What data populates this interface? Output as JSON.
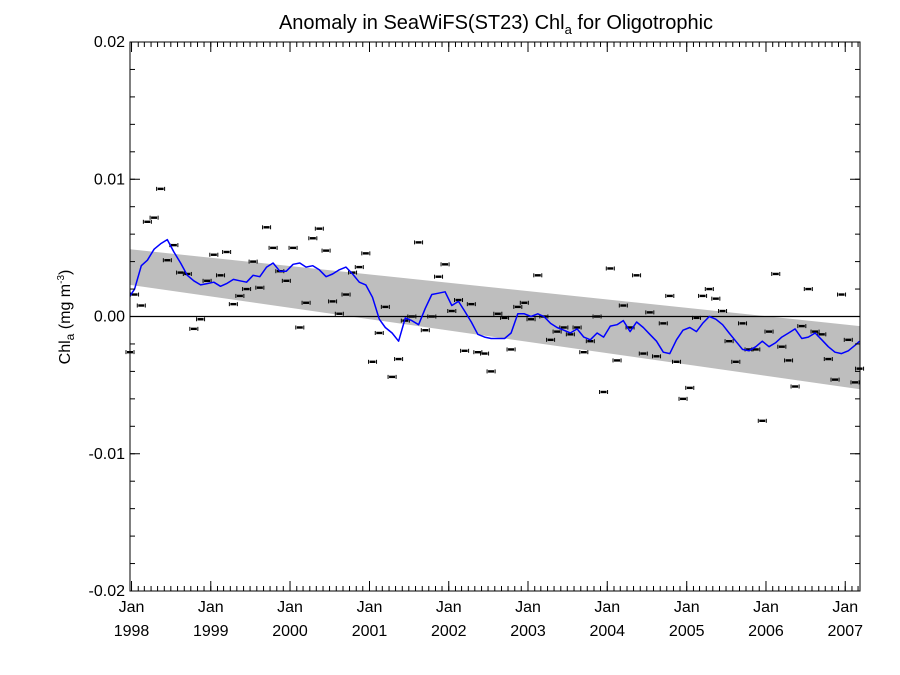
{
  "chart_data": {
    "type": "scatter",
    "title": {
      "main": "Anomaly in SeaWiFS(ST23) Chl",
      "sub": "a",
      "rest": " for Oligotrophic"
    },
    "ylabel": {
      "main": "Chl",
      "sub": "a",
      "unit_open": " (mg m",
      "unit_sup": "-3",
      "unit_close": ")"
    },
    "xlabel": "",
    "ylim": [
      -0.02,
      0.02
    ],
    "xlim": [
      "1997-12-25",
      "2007-03-10"
    ],
    "y_ticks": [
      {
        "value": 0.02,
        "label": "0.02"
      },
      {
        "value": 0.01,
        "label": "0.01"
      },
      {
        "value": 0.0,
        "label": "0.00"
      },
      {
        "value": -0.01,
        "label": "-0.01"
      },
      {
        "value": -0.02,
        "label": "-0.02"
      }
    ],
    "x_ticks": [
      {
        "date": "1998-01-01",
        "month": "Jan",
        "year": "1998"
      },
      {
        "date": "1999-01-01",
        "month": "Jan",
        "year": "1999"
      },
      {
        "date": "2000-01-01",
        "month": "Jan",
        "year": "2000"
      },
      {
        "date": "2001-01-01",
        "month": "Jan",
        "year": "2001"
      },
      {
        "date": "2002-01-01",
        "month": "Jan",
        "year": "2002"
      },
      {
        "date": "2003-01-01",
        "month": "Jan",
        "year": "2003"
      },
      {
        "date": "2004-01-01",
        "month": "Jan",
        "year": "2004"
      },
      {
        "date": "2005-01-01",
        "month": "Jan",
        "year": "2005"
      },
      {
        "date": "2006-01-01",
        "month": "Jan",
        "year": "2006"
      },
      {
        "date": "2007-01-01",
        "month": "Jan",
        "year": "2007"
      }
    ],
    "zero_line": 0.0,
    "trend_band": {
      "start": {
        "x": "1997-12-25",
        "upper": 0.0049,
        "lower": 0.0023
      },
      "end": {
        "x": "2007-03-10",
        "upper": -0.0007,
        "lower": -0.0053
      },
      "color": "#bebebe"
    },
    "series": [
      {
        "style": "points",
        "color": "#000000",
        "points": [
          [
            "1997-12-25",
            -0.0026
          ],
          [
            "1998-01-15",
            0.0016
          ],
          [
            "1998-02-15",
            0.0008
          ],
          [
            "1998-03-15",
            0.0069
          ],
          [
            "1998-04-15",
            0.0072
          ],
          [
            "1998-05-15",
            0.0093
          ],
          [
            "1998-06-15",
            0.0041
          ],
          [
            "1998-07-15",
            0.0052
          ],
          [
            "1998-08-15",
            0.0032
          ],
          [
            "1998-09-15",
            0.0031
          ],
          [
            "1998-10-15",
            -0.0009
          ],
          [
            "1998-11-15",
            -0.0002
          ],
          [
            "1998-12-15",
            0.0026
          ],
          [
            "1999-01-15",
            0.0045
          ],
          [
            "1999-02-15",
            0.003
          ],
          [
            "1999-03-15",
            0.0047
          ],
          [
            "1999-04-15",
            0.0009
          ],
          [
            "1999-05-15",
            0.0015
          ],
          [
            "1999-06-15",
            0.002
          ],
          [
            "1999-07-15",
            0.004
          ],
          [
            "1999-08-15",
            0.0021
          ],
          [
            "1999-09-15",
            0.0065
          ],
          [
            "1999-10-15",
            0.005
          ],
          [
            "1999-11-15",
            0.0033
          ],
          [
            "1999-12-15",
            0.0026
          ],
          [
            "2000-01-15",
            0.005
          ],
          [
            "2000-02-15",
            -0.0008
          ],
          [
            "2000-03-15",
            0.001
          ],
          [
            "2000-04-15",
            0.0057
          ],
          [
            "2000-05-15",
            0.0064
          ],
          [
            "2000-06-15",
            0.0048
          ],
          [
            "2000-07-15",
            0.0011
          ],
          [
            "2000-08-15",
            0.0002
          ],
          [
            "2000-09-15",
            0.0016
          ],
          [
            "2000-10-15",
            0.0032
          ],
          [
            "2000-11-15",
            0.0036
          ],
          [
            "2000-12-15",
            0.0046
          ],
          [
            "2001-01-15",
            -0.0033
          ],
          [
            "2001-02-15",
            -0.0012
          ],
          [
            "2001-03-15",
            0.0007
          ],
          [
            "2001-04-15",
            -0.0044
          ],
          [
            "2001-05-15",
            -0.0031
          ],
          [
            "2001-06-15",
            -0.0003
          ],
          [
            "2001-07-15",
            0.0
          ],
          [
            "2001-08-15",
            0.0054
          ],
          [
            "2001-09-15",
            -0.001
          ],
          [
            "2001-10-15",
            0.0
          ],
          [
            "2001-11-15",
            0.0029
          ],
          [
            "2001-12-15",
            0.0038
          ],
          [
            "2002-01-15",
            0.0004
          ],
          [
            "2002-02-15",
            0.0012
          ],
          [
            "2002-03-15",
            -0.0025
          ],
          [
            "2002-04-15",
            0.0009
          ],
          [
            "2002-05-15",
            -0.0026
          ],
          [
            "2002-06-15",
            -0.0027
          ],
          [
            "2002-07-15",
            -0.004
          ],
          [
            "2002-08-15",
            0.0002
          ],
          [
            "2002-09-15",
            -0.0001
          ],
          [
            "2002-10-15",
            -0.0024
          ],
          [
            "2002-11-15",
            0.0007
          ],
          [
            "2002-12-15",
            0.001
          ],
          [
            "2003-01-15",
            -0.0002
          ],
          [
            "2003-02-15",
            0.003
          ],
          [
            "2003-03-15",
            0.0
          ],
          [
            "2003-04-15",
            -0.0017
          ],
          [
            "2003-05-15",
            -0.0011
          ],
          [
            "2003-06-15",
            -0.0008
          ],
          [
            "2003-07-15",
            -0.0013
          ],
          [
            "2003-08-15",
            -0.0008
          ],
          [
            "2003-09-15",
            -0.0026
          ],
          [
            "2003-10-15",
            -0.0018
          ],
          [
            "2003-11-15",
            0.0
          ],
          [
            "2003-12-15",
            -0.0055
          ],
          [
            "2004-01-15",
            0.0035
          ],
          [
            "2004-02-15",
            -0.0032
          ],
          [
            "2004-03-15",
            0.0008
          ],
          [
            "2004-04-15",
            -0.0008
          ],
          [
            "2004-05-15",
            0.003
          ],
          [
            "2004-06-15",
            -0.0027
          ],
          [
            "2004-07-15",
            0.0003
          ],
          [
            "2004-08-15",
            -0.0029
          ],
          [
            "2004-09-15",
            -0.0005
          ],
          [
            "2004-10-15",
            0.0015
          ],
          [
            "2004-11-15",
            -0.0033
          ],
          [
            "2004-12-15",
            -0.006
          ],
          [
            "2005-01-15",
            -0.0052
          ],
          [
            "2005-02-15",
            -0.0001
          ],
          [
            "2005-03-15",
            0.0015
          ],
          [
            "2005-04-15",
            0.002
          ],
          [
            "2005-05-15",
            0.0013
          ],
          [
            "2005-06-15",
            0.0004
          ],
          [
            "2005-07-15",
            -0.0018
          ],
          [
            "2005-08-15",
            -0.0033
          ],
          [
            "2005-09-15",
            -0.0005
          ],
          [
            "2005-10-15",
            -0.0024
          ],
          [
            "2005-11-15",
            -0.0024
          ],
          [
            "2005-12-15",
            -0.0076
          ],
          [
            "2006-01-15",
            -0.0011
          ],
          [
            "2006-02-15",
            0.0031
          ],
          [
            "2006-03-15",
            -0.0022
          ],
          [
            "2006-04-15",
            -0.0032
          ],
          [
            "2006-05-15",
            -0.0051
          ],
          [
            "2006-06-15",
            -0.0007
          ],
          [
            "2006-07-15",
            0.002
          ],
          [
            "2006-08-15",
            -0.0011
          ],
          [
            "2006-09-15",
            -0.0013
          ],
          [
            "2006-10-15",
            -0.0031
          ],
          [
            "2006-11-15",
            -0.0046
          ],
          [
            "2006-12-15",
            0.0016
          ],
          [
            "2007-01-15",
            -0.0017
          ],
          [
            "2007-02-15",
            -0.0048
          ],
          [
            "2007-03-08",
            -0.0038
          ]
        ]
      },
      {
        "style": "line",
        "color": "#0000ff",
        "points": [
          [
            "1997-12-25",
            0.0015
          ],
          [
            "1998-01-15",
            0.002
          ],
          [
            "1998-02-15",
            0.0037
          ],
          [
            "1998-03-15",
            0.0041
          ],
          [
            "1998-04-15",
            0.0049
          ],
          [
            "1998-05-15",
            0.0053
          ],
          [
            "1998-06-15",
            0.0056
          ],
          [
            "1998-07-15",
            0.0047
          ],
          [
            "1998-08-15",
            0.0039
          ],
          [
            "1998-09-15",
            0.003
          ],
          [
            "1998-10-15",
            0.0026
          ],
          [
            "1998-11-15",
            0.0023
          ],
          [
            "1998-12-15",
            0.0024
          ],
          [
            "1999-01-15",
            0.0025
          ],
          [
            "1999-02-15",
            0.0022
          ],
          [
            "1999-03-15",
            0.0024
          ],
          [
            "1999-04-15",
            0.0027
          ],
          [
            "1999-05-15",
            0.0026
          ],
          [
            "1999-06-15",
            0.0025
          ],
          [
            "1999-07-15",
            0.003
          ],
          [
            "1999-08-15",
            0.0029
          ],
          [
            "1999-09-15",
            0.0036
          ],
          [
            "1999-10-15",
            0.0039
          ],
          [
            "1999-11-15",
            0.0033
          ],
          [
            "1999-12-15",
            0.0033
          ],
          [
            "2000-01-15",
            0.0038
          ],
          [
            "2000-02-15",
            0.0039
          ],
          [
            "2000-03-15",
            0.0036
          ],
          [
            "2000-04-15",
            0.0037
          ],
          [
            "2000-05-15",
            0.0034
          ],
          [
            "2000-06-15",
            0.0029
          ],
          [
            "2000-07-15",
            0.0031
          ],
          [
            "2000-08-15",
            0.0034
          ],
          [
            "2000-09-15",
            0.0036
          ],
          [
            "2000-10-15",
            0.0031
          ],
          [
            "2000-11-15",
            0.0025
          ],
          [
            "2000-12-15",
            0.0023
          ],
          [
            "2001-01-15",
            0.0014
          ],
          [
            "2001-02-15",
            -0.0002
          ],
          [
            "2001-03-15",
            -0.0008
          ],
          [
            "2001-04-15",
            -0.0012
          ],
          [
            "2001-05-15",
            -0.0018
          ],
          [
            "2001-06-15",
            -0.0001
          ],
          [
            "2001-07-15",
            -0.0003
          ],
          [
            "2001-08-15",
            -0.0006
          ],
          [
            "2001-09-15",
            0.0006
          ],
          [
            "2001-10-15",
            0.0016
          ],
          [
            "2001-11-15",
            0.0017
          ],
          [
            "2001-12-15",
            0.0018
          ],
          [
            "2002-01-15",
            0.0008
          ],
          [
            "2002-02-15",
            0.0011
          ],
          [
            "2002-03-15",
            0.0004
          ],
          [
            "2002-04-15",
            -0.0004
          ],
          [
            "2002-05-15",
            -0.0013
          ],
          [
            "2002-06-15",
            -0.0015
          ],
          [
            "2002-07-15",
            -0.0016
          ],
          [
            "2002-08-15",
            -0.0016
          ],
          [
            "2002-09-15",
            -0.0016
          ],
          [
            "2002-10-15",
            -0.0012
          ],
          [
            "2002-11-15",
            0.0002
          ],
          [
            "2002-12-15",
            0.0002
          ],
          [
            "2003-01-15",
            0.0
          ],
          [
            "2003-02-15",
            0.0002
          ],
          [
            "2003-03-15",
            0.0
          ],
          [
            "2003-04-15",
            -0.0005
          ],
          [
            "2003-05-15",
            -0.0008
          ],
          [
            "2003-06-15",
            -0.001
          ],
          [
            "2003-07-15",
            -0.0012
          ],
          [
            "2003-08-15",
            -0.0009
          ],
          [
            "2003-09-15",
            -0.0015
          ],
          [
            "2003-10-15",
            -0.0017
          ],
          [
            "2003-11-15",
            -0.0012
          ],
          [
            "2003-12-15",
            -0.0015
          ],
          [
            "2004-01-15",
            -0.0007
          ],
          [
            "2004-02-15",
            -0.0006
          ],
          [
            "2004-03-15",
            -0.0003
          ],
          [
            "2004-04-15",
            -0.0011
          ],
          [
            "2004-05-15",
            -0.0004
          ],
          [
            "2004-06-15",
            -0.0008
          ],
          [
            "2004-07-15",
            -0.0013
          ],
          [
            "2004-08-15",
            -0.0018
          ],
          [
            "2004-09-15",
            -0.0026
          ],
          [
            "2004-10-15",
            -0.0027
          ],
          [
            "2004-11-15",
            -0.0017
          ],
          [
            "2004-12-15",
            -0.001
          ],
          [
            "2005-01-15",
            -0.0008
          ],
          [
            "2005-02-15",
            -0.0011
          ],
          [
            "2005-03-15",
            -0.0005
          ],
          [
            "2005-04-15",
            0.0
          ],
          [
            "2005-05-15",
            -0.0002
          ],
          [
            "2005-06-15",
            -0.0006
          ],
          [
            "2005-07-15",
            -0.0012
          ],
          [
            "2005-08-15",
            -0.0018
          ],
          [
            "2005-09-15",
            -0.0024
          ],
          [
            "2005-10-15",
            -0.0025
          ],
          [
            "2005-11-15",
            -0.0022
          ],
          [
            "2005-12-15",
            -0.0018
          ],
          [
            "2006-01-15",
            -0.0022
          ],
          [
            "2006-02-15",
            -0.0019
          ],
          [
            "2006-03-15",
            -0.0015
          ],
          [
            "2006-04-15",
            -0.0012
          ],
          [
            "2006-05-15",
            -0.0009
          ],
          [
            "2006-06-15",
            -0.0016
          ],
          [
            "2006-07-15",
            -0.0015
          ],
          [
            "2006-08-15",
            -0.0012
          ],
          [
            "2006-09-15",
            -0.0017
          ],
          [
            "2006-10-15",
            -0.0022
          ],
          [
            "2006-11-15",
            -0.0026
          ],
          [
            "2006-12-15",
            -0.0027
          ],
          [
            "2007-01-15",
            -0.0025
          ],
          [
            "2007-02-15",
            -0.0021
          ],
          [
            "2007-03-08",
            -0.0018
          ]
        ]
      }
    ]
  }
}
